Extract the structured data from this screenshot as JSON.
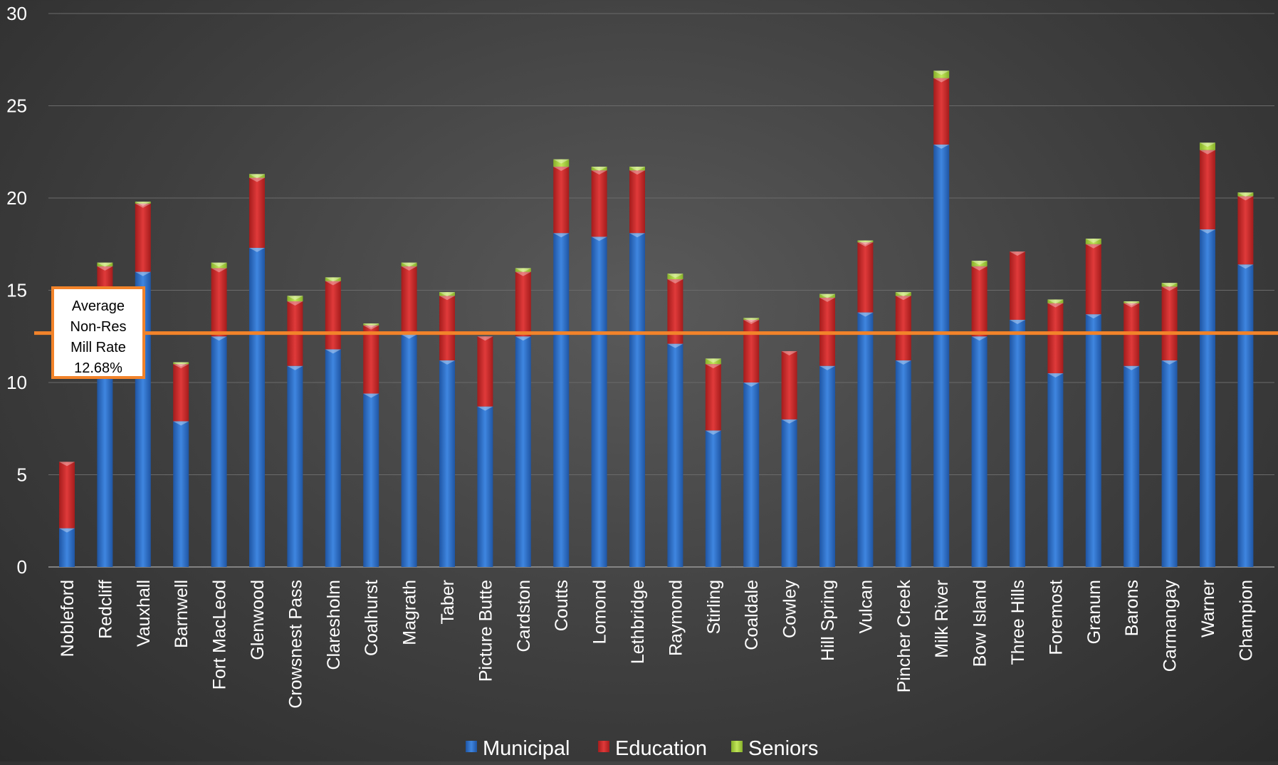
{
  "chart_data": {
    "type": "bar",
    "stacked": true,
    "categories": [
      "Nobleford",
      "Redcliff",
      "Vauxhall",
      "Barnwell",
      "Fort MacLeod",
      "Glenwood",
      "Crowsnest Pass",
      "Claresholm",
      "Coalhurst",
      "Magrath",
      "Taber",
      "Picture Butte",
      "Cardston",
      "Coutts",
      "Lomond",
      "Lethbridge",
      "Raymond",
      "Stirling",
      "Coaldale",
      "Cowley",
      "Hill Spring",
      "Vulcan",
      "Pincher Creek",
      "Milk River",
      "Bow Island",
      "Three Hills",
      "Foremost",
      "Granum",
      "Barons",
      "Carmangay",
      "Warner",
      "Champion"
    ],
    "series": [
      {
        "name": "Municipal",
        "color": "#2e6fc7",
        "values": [
          2.1,
          10.5,
          16.0,
          7.9,
          12.5,
          17.3,
          10.9,
          11.8,
          9.4,
          12.6,
          11.2,
          8.7,
          12.5,
          18.1,
          17.9,
          18.1,
          12.1,
          7.4,
          10.0,
          8.0,
          10.9,
          13.8,
          11.2,
          22.9,
          12.5,
          13.4,
          10.5,
          13.7,
          10.9,
          11.2,
          18.3,
          16.4
        ]
      },
      {
        "name": "Education",
        "color": "#d42a2a",
        "values": [
          3.6,
          5.8,
          3.7,
          3.1,
          3.7,
          3.8,
          3.5,
          3.7,
          3.7,
          3.7,
          3.5,
          3.8,
          3.5,
          3.6,
          3.6,
          3.4,
          3.5,
          3.6,
          3.4,
          3.7,
          3.7,
          3.8,
          3.5,
          3.6,
          3.8,
          3.7,
          3.8,
          3.8,
          3.4,
          4.0,
          4.3,
          3.7
        ]
      },
      {
        "name": "Seniors",
        "color": "#a6d13a",
        "values": [
          0.0,
          0.2,
          0.1,
          0.1,
          0.3,
          0.2,
          0.3,
          0.2,
          0.1,
          0.2,
          0.2,
          0.0,
          0.2,
          0.4,
          0.2,
          0.2,
          0.3,
          0.3,
          0.1,
          0.0,
          0.2,
          0.1,
          0.2,
          0.4,
          0.3,
          0.0,
          0.2,
          0.3,
          0.1,
          0.2,
          0.4,
          0.2
        ]
      }
    ],
    "ylim": [
      0,
      30
    ],
    "yticks": [
      0,
      5,
      10,
      15,
      20,
      25,
      30
    ],
    "grid": true,
    "legend_position": "bottom",
    "reference_line": {
      "value": 12.68,
      "color": "#f2832a"
    },
    "annotation": {
      "lines": [
        "Average",
        "Non-Res",
        "Mill Rate",
        "12.68%"
      ]
    }
  }
}
